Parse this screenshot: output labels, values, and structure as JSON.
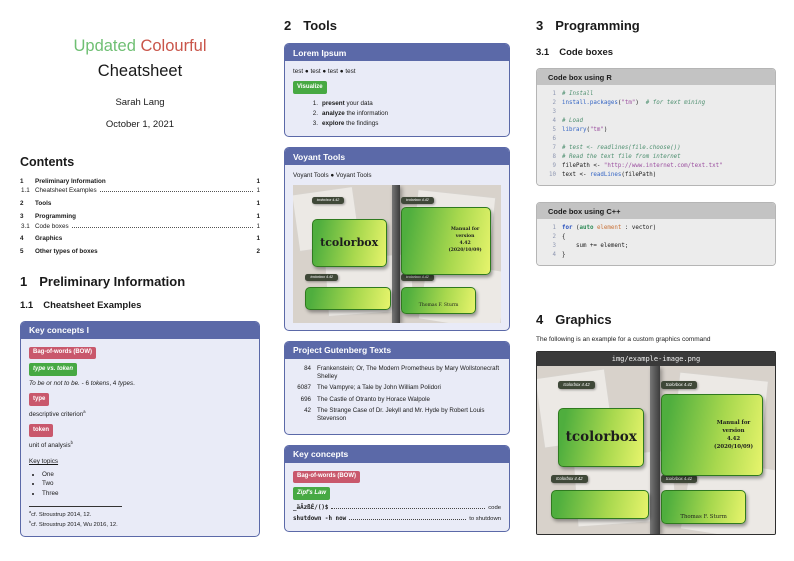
{
  "colors": {
    "accent_purple": "#5b69a8",
    "badge_red": "#c9586c",
    "badge_green": "#47a943",
    "title_green": "#6fbf73",
    "title_red": "#c9554a",
    "code_header_gray": "#c3c3c3",
    "image_header_dark": "#3a3a3a"
  },
  "header": {
    "title_word1": "Updated",
    "title_word2": "Colourful",
    "title_line2": "Cheatsheet",
    "author": "Sarah Lang",
    "date": "October 1, 2021"
  },
  "toc": {
    "heading": "Contents",
    "entries": [
      {
        "num": "1",
        "label": "Preliminary Information",
        "page": "1"
      },
      {
        "num": "1.1",
        "label": "Cheatsheet Examples",
        "page": "1"
      },
      {
        "num": "2",
        "label": "Tools",
        "page": "1"
      },
      {
        "num": "3",
        "label": "Programming",
        "page": "1"
      },
      {
        "num": "3.1",
        "label": "Code boxes",
        "page": "1"
      },
      {
        "num": "4",
        "label": "Graphics",
        "page": "1"
      },
      {
        "num": "5",
        "label": "Other types of boxes",
        "page": "2"
      }
    ]
  },
  "sections": {
    "s1": {
      "num": "1",
      "title": "Preliminary Information"
    },
    "s1_1": {
      "num": "1.1",
      "title": "Cheatsheet Examples"
    },
    "s2": {
      "num": "2",
      "title": "Tools"
    },
    "s3": {
      "num": "3",
      "title": "Programming"
    },
    "s3_1": {
      "num": "3.1",
      "title": "Code boxes"
    },
    "s4": {
      "num": "4",
      "title": "Graphics",
      "intro": "The following is an example for a custom graphics command"
    }
  },
  "kc1": {
    "title": "Key concepts I",
    "badge_bow": "Bag-of-words (BOW)",
    "badge_type_vs_token": "type vs. token",
    "example_tokens": [
      {
        "t": "To be or not to be.",
        "c": "italic"
      },
      {
        "t": " - 6 ",
        "c": "plain"
      },
      {
        "t": "tokens",
        "c": "italic"
      },
      {
        "t": ", 4 ",
        "c": "plain"
      },
      {
        "t": "types",
        "c": "italic"
      },
      {
        "t": ".",
        "c": "plain"
      }
    ],
    "badge_type": "type",
    "type_def_tokens": [
      {
        "t": "descriptive criterion",
        "c": "plain"
      },
      {
        "t": "a",
        "c": "sup"
      }
    ],
    "badge_token": "token",
    "token_def_tokens": [
      {
        "t": "unit of analysis",
        "c": "plain"
      },
      {
        "t": "b",
        "c": "sup"
      }
    ],
    "key_topics": "Key topics",
    "bullets": [
      "One",
      "Two",
      "Three"
    ],
    "footnote_a_tokens": [
      {
        "t": "a",
        "c": "sup"
      },
      {
        "t": "cf. Stroustrup 2014, 12.",
        "c": "plain"
      }
    ],
    "footnote_b_tokens": [
      {
        "t": "b",
        "c": "sup"
      },
      {
        "t": "cf. Stroustrup 2014, Wu 2016, 12.",
        "c": "plain"
      }
    ]
  },
  "lorem": {
    "title": "Lorem Ipsum",
    "test_line": "test ● test ● test ● test",
    "badge": "Visualize",
    "steps": [
      {
        "num": "1.",
        "tokens": [
          {
            "t": "present",
            "c": "bold"
          },
          {
            "t": " your data",
            "c": "plain"
          }
        ]
      },
      {
        "num": "2.",
        "tokens": [
          {
            "t": "analyze",
            "c": "bold"
          },
          {
            "t": " the information",
            "c": "plain"
          }
        ]
      },
      {
        "num": "3.",
        "tokens": [
          {
            "t": "explore",
            "c": "bold"
          },
          {
            "t": " the findings",
            "c": "plain"
          }
        ]
      }
    ]
  },
  "voyant": {
    "title": "Voyant Tools",
    "subtitle": "Voyant Tools ● Voyant Tools"
  },
  "poster": {
    "tab": "tcolorbox 4.42",
    "main_title": "tcolorbox",
    "manual_tokens": [
      {
        "t": "Manual for",
        "c": "line"
      },
      {
        "t": "version",
        "c": "line"
      },
      {
        "t": "4.42",
        "c": "line"
      },
      {
        "t": "(2020/10/09)",
        "c": "line"
      }
    ],
    "author": "Thomas F. Sturm"
  },
  "gutenberg": {
    "title": "Project Gutenberg Texts",
    "rows": [
      {
        "id": "84",
        "text": "Frankenstein; Or, The Modern Prometheus by Mary Wollstonecraft Shelley"
      },
      {
        "id": "6087",
        "text": "The Vampyre; a Tale by John William Polidori"
      },
      {
        "id": "696",
        "text": "The Castle of Otranto by Horace Walpole"
      },
      {
        "id": "42",
        "text": "The Strange Case of Dr. Jekyll and Mr. Hyde by Robert Louis Stevenson"
      }
    ]
  },
  "kc2": {
    "title": "Key concepts",
    "badge_bow": "Bag-of-words (BOW)",
    "badge_zipf": "Zipf's Law",
    "rows": [
      {
        "code": "_äÄzßÉ/()$",
        "label": "code"
      },
      {
        "code": "shutdown -h now",
        "label": "to shutdown"
      }
    ]
  },
  "code_r": {
    "title": "Code box using R",
    "lines": [
      {
        "n": "1",
        "tokens": [
          {
            "t": "# Install",
            "c": "comment"
          }
        ]
      },
      {
        "n": "2",
        "tokens": [
          {
            "t": "install.packages",
            "c": "func"
          },
          {
            "t": "(",
            "c": "plain"
          },
          {
            "t": "\"tm\"",
            "c": "string"
          },
          {
            "t": ")",
            "c": "plain"
          },
          {
            "t": "  # for text mining",
            "c": "comment"
          }
        ]
      },
      {
        "n": "3",
        "tokens": []
      },
      {
        "n": "4",
        "tokens": [
          {
            "t": "# Load",
            "c": "comment"
          }
        ]
      },
      {
        "n": "5",
        "tokens": [
          {
            "t": "library",
            "c": "func"
          },
          {
            "t": "(",
            "c": "plain"
          },
          {
            "t": "\"tm\"",
            "c": "string"
          },
          {
            "t": ")",
            "c": "plain"
          }
        ]
      },
      {
        "n": "6",
        "tokens": []
      },
      {
        "n": "7",
        "tokens": [
          {
            "t": "# test <- readlines(file.choose())",
            "c": "comment"
          }
        ]
      },
      {
        "n": "8",
        "tokens": [
          {
            "t": "# Read the text file from internet",
            "c": "comment"
          }
        ]
      },
      {
        "n": "9",
        "tokens": [
          {
            "t": "filePath ",
            "c": "plain"
          },
          {
            "t": "<- ",
            "c": "plain"
          },
          {
            "t": "\"http://www.internet.com/text.txt\"",
            "c": "string"
          }
        ]
      },
      {
        "n": "10",
        "tokens": [
          {
            "t": "text ",
            "c": "plain"
          },
          {
            "t": "<- ",
            "c": "plain"
          },
          {
            "t": "readLines",
            "c": "func"
          },
          {
            "t": "(filePath)",
            "c": "plain"
          }
        ]
      }
    ]
  },
  "code_cpp": {
    "title": "Code box using C++",
    "lines": [
      {
        "n": "1",
        "tokens": [
          {
            "t": "for",
            "c": "keyword"
          },
          {
            "t": " (",
            "c": "plain"
          },
          {
            "t": "auto",
            "c": "keyword2"
          },
          {
            "t": " ",
            "c": "plain"
          },
          {
            "t": "element",
            "c": "var"
          },
          {
            "t": " : vector)",
            "c": "plain"
          }
        ]
      },
      {
        "n": "2",
        "tokens": [
          {
            "t": "{",
            "c": "plain"
          }
        ]
      },
      {
        "n": "3",
        "tokens": [
          {
            "t": "    sum += element;",
            "c": "plain"
          }
        ]
      },
      {
        "n": "4",
        "tokens": [
          {
            "t": "}",
            "c": "plain"
          }
        ]
      }
    ]
  },
  "imagebox": {
    "title": "img/example-image.png"
  }
}
